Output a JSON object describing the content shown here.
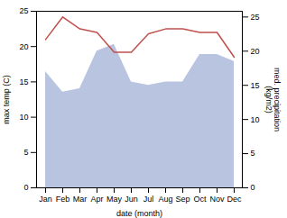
{
  "chart_data": {
    "type": "line",
    "categories": [
      "Jan",
      "Feb",
      "Mar",
      "Apr",
      "May",
      "Jun",
      "Jul",
      "Aug",
      "Sep",
      "Oct",
      "Nov",
      "Dec"
    ],
    "series": [
      {
        "type": "area",
        "axis": "y2",
        "color": "#b8c4e0",
        "values": [
          17.0,
          14.0,
          14.5,
          20.0,
          21.0,
          15.5,
          15.0,
          15.5,
          15.5,
          19.5,
          19.5,
          18.5
        ]
      },
      {
        "type": "line",
        "color": "#c0504d",
        "values": [
          21.0,
          24.2,
          22.5,
          22.0,
          19.2,
          19.2,
          21.8,
          22.5,
          22.5,
          22.0,
          22.0,
          18.5
        ]
      }
    ],
    "xlabel": "date (month)",
    "ylabel": "max temp (C)",
    "y2label": "med. precipitation\n(kg/m2)",
    "ylim": [
      0,
      25
    ],
    "yticks": [
      0,
      5,
      10,
      15,
      20,
      25
    ],
    "y2lim": [
      0,
      25.84
    ],
    "y2ticks": [
      0,
      5,
      10,
      15,
      20,
      25
    ]
  }
}
